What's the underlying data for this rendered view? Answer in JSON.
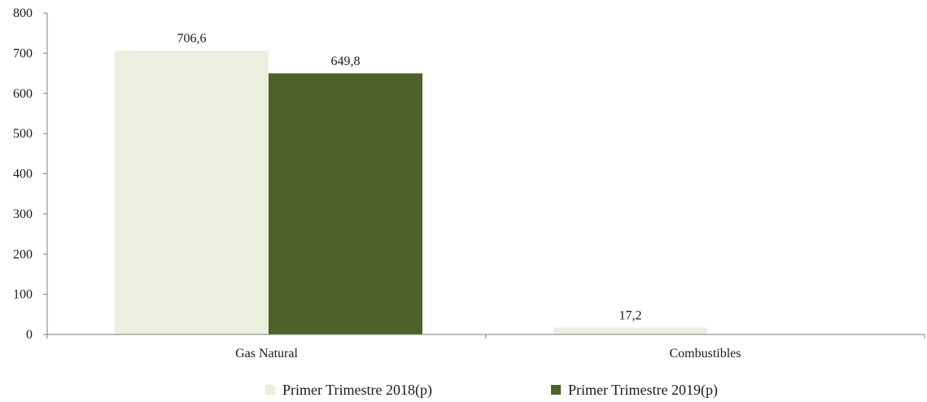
{
  "chart_data": {
    "type": "bar",
    "categories": [
      "Gas Natural",
      "Combustibles"
    ],
    "series": [
      {
        "name": "Primer Trimestre 2018(p)",
        "values": [
          706.6,
          17.2
        ],
        "labels": [
          "706,6",
          "17,2"
        ],
        "color": "#ebefe0"
      },
      {
        "name": "Primer Trimestre 2019(p)",
        "values": [
          649.8,
          null
        ],
        "labels": [
          "649,8",
          ""
        ],
        "color": "#4f6229"
      }
    ],
    "title": "",
    "xlabel": "",
    "ylabel": "",
    "ylim": [
      0,
      800
    ],
    "yticks": [
      0,
      100,
      200,
      300,
      400,
      500,
      600,
      700,
      800
    ],
    "grid": false,
    "legend_position": "bottom"
  }
}
